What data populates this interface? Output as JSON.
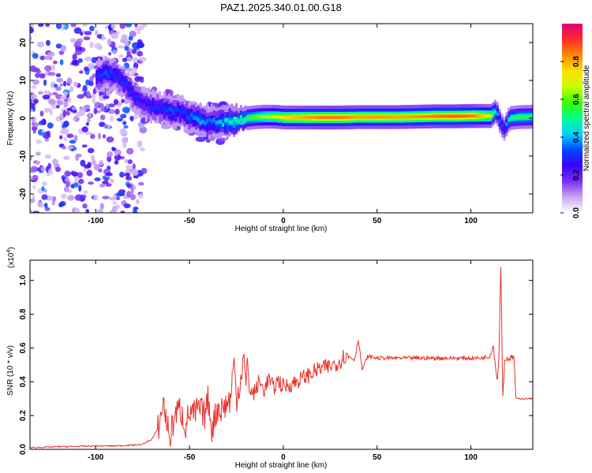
{
  "title": "PAZ1.2025.340.01.00.G18",
  "chart_data": [
    {
      "type": "heatmap",
      "xlabel": "Height of straight line (km)",
      "ylabel": "Frequency (Hz)",
      "xlim": [
        -135,
        133
      ],
      "ylim": [
        -25,
        25
      ],
      "xticks": [
        -100,
        -50,
        0,
        50,
        100
      ],
      "xtick_labels": [
        "-100",
        "-50",
        "0",
        "50",
        "100"
      ],
      "yticks": [
        -20,
        -10,
        0,
        10,
        20
      ],
      "ytick_labels": [
        "-20",
        "-10",
        "0",
        "10",
        "20"
      ],
      "colorbar": {
        "label": "Normalized spectral amplitude",
        "range": [
          0,
          1
        ],
        "ticks": [
          0.0,
          0.2,
          0.4,
          0.6,
          0.8
        ],
        "tick_labels": [
          "0.0",
          "0.2",
          "0.4",
          "0.6",
          "0.8"
        ],
        "colors": [
          "#ffffff",
          "#c9a6f2",
          "#7b2ff0",
          "#3b00ff",
          "#0047ff",
          "#00d2ff",
          "#00ff8c",
          "#3cff00",
          "#c8ff00",
          "#ffe000",
          "#ff8a00",
          "#ff2a2a",
          "#e0007a"
        ]
      },
      "ridge": {
        "x": [
          -100,
          -95,
          -90,
          -85,
          -80,
          -75,
          -70,
          -65,
          -60,
          -55,
          -50,
          -45,
          -40,
          -35,
          -30,
          -25,
          -20,
          -15,
          -10,
          -5,
          0,
          10,
          20,
          30,
          40,
          50,
          60,
          70,
          80,
          90,
          100,
          110,
          113,
          115,
          117,
          120,
          125,
          133
        ],
        "y": [
          11,
          12,
          11.5,
          9,
          6,
          4,
          3,
          2.5,
          2,
          1.5,
          0.5,
          -0.5,
          -1,
          -1.2,
          -1,
          -0.5,
          0,
          0.3,
          0.4,
          0.4,
          0.2,
          0.2,
          0.2,
          0.2,
          0.3,
          0.3,
          0.3,
          0.4,
          0.5,
          0.5,
          0.6,
          0.6,
          2,
          -1,
          -3,
          0,
          0.3,
          0.4
        ],
        "amplitude": [
          0.3,
          0.35,
          0.3,
          0.3,
          0.3,
          0.25,
          0.3,
          0.3,
          0.35,
          0.3,
          0.35,
          0.4,
          0.35,
          0.4,
          0.45,
          0.5,
          0.55,
          0.6,
          0.65,
          0.7,
          0.75,
          0.8,
          0.85,
          0.85,
          0.8,
          0.82,
          0.8,
          0.82,
          0.85,
          0.88,
          0.85,
          0.7,
          0.4,
          0.35,
          0.3,
          0.5,
          0.55,
          0.55
        ]
      },
      "noise_region_x": [
        -135,
        -78
      ]
    },
    {
      "type": "line",
      "xlabel": "Height of straight line (km)",
      "ylabel": "SNR (10 * v/v)",
      "y_scale_label": "(x10",
      "y_scale_exponent": "4",
      "y_scale_close": ")",
      "xlim": [
        -135,
        133
      ],
      "ylim": [
        0,
        1.12
      ],
      "xticks": [
        -100,
        -50,
        0,
        50,
        100
      ],
      "xtick_labels": [
        "-100",
        "-50",
        "0",
        "50",
        "100"
      ],
      "yticks": [
        0,
        0.2,
        0.4,
        0.6,
        0.8,
        1.0
      ],
      "ytick_labels": [
        "0.0",
        "0.2",
        "0.4",
        "0.6",
        "0.8",
        "1.0"
      ],
      "series": [
        {
          "name": "SNR",
          "color": "#e8312a",
          "x": [
            -135,
            -120,
            -100,
            -90,
            -80,
            -75,
            -70,
            -67,
            -65,
            -64,
            -63,
            -62,
            -61,
            -60,
            -58,
            -55,
            -52,
            -50,
            -48,
            -45,
            -42,
            -40,
            -38,
            -35,
            -33,
            -30,
            -28,
            -27,
            -26,
            -25,
            -23,
            -21,
            -20,
            -19,
            -18,
            -15,
            -13,
            -10,
            -8,
            -5,
            -3,
            0,
            5,
            10,
            15,
            20,
            25,
            30,
            32,
            35,
            38,
            40,
            41,
            42,
            45,
            50,
            60,
            70,
            80,
            90,
            100,
            105,
            110,
            112,
            113,
            114,
            115,
            116,
            117,
            118,
            120,
            122,
            123,
            124,
            125,
            133
          ],
          "y": [
            0.01,
            0.015,
            0.02,
            0.02,
            0.025,
            0.03,
            0.06,
            0.12,
            0.2,
            0.29,
            0.22,
            0.15,
            0.1,
            0.08,
            0.2,
            0.24,
            0.14,
            0.22,
            0.2,
            0.24,
            0.2,
            0.3,
            0.12,
            0.25,
            0.24,
            0.27,
            0.3,
            0.45,
            0.5,
            0.3,
            0.4,
            0.55,
            0.35,
            0.56,
            0.33,
            0.34,
            0.4,
            0.35,
            0.42,
            0.36,
            0.41,
            0.37,
            0.39,
            0.42,
            0.45,
            0.48,
            0.49,
            0.52,
            0.55,
            0.55,
            0.53,
            0.65,
            0.57,
            0.47,
            0.55,
            0.54,
            0.54,
            0.54,
            0.54,
            0.54,
            0.54,
            0.54,
            0.55,
            0.62,
            0.5,
            0.4,
            0.57,
            1.12,
            0.3,
            0.53,
            0.54,
            0.54,
            0.55,
            0.3,
            0.3,
            0.3
          ]
        }
      ]
    }
  ]
}
